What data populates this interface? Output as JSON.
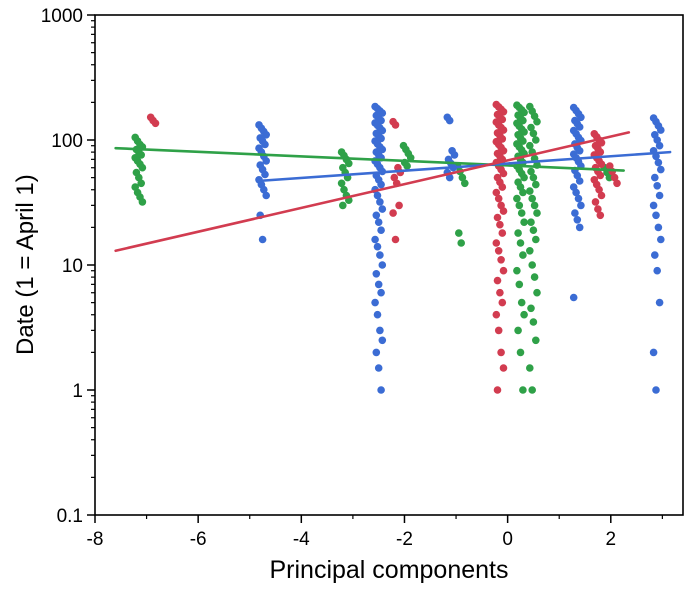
{
  "chart_data": {
    "type": "scatter",
    "title": "",
    "xlabel": "Principal components",
    "ylabel": "Date (1 = April 1)",
    "xlim": [
      -8,
      3.4
    ],
    "ylim": [
      0.1,
      1000
    ],
    "y_scale": "log",
    "x_ticks": [
      -8,
      -6,
      -4,
      -2,
      0,
      2
    ],
    "x_minor_ticks": [
      -7,
      -5,
      -3,
      -1,
      1,
      3
    ],
    "y_ticks": [
      0.1,
      1,
      10,
      100,
      1000
    ],
    "grid": false,
    "legend": "none",
    "series": [
      {
        "name": "series-green",
        "color": "#2fa148",
        "trend": {
          "x1": -7.6,
          "y1": 86,
          "x2": 2.25,
          "y2": 57
        },
        "clusters": [
          {
            "x": -7.15,
            "ys": [
              105,
              98,
              92,
              88,
              84,
              80,
              76,
              72,
              68,
              64,
              60,
              55,
              50,
              45,
              42,
              38,
              35,
              32
            ]
          },
          {
            "x": -3.15,
            "ys": [
              80,
              75,
              70,
              65,
              60,
              55,
              50,
              45,
              40,
              36,
              33,
              30
            ]
          },
          {
            "x": -1.95,
            "ys": [
              90,
              84,
              78,
              72,
              66,
              62
            ]
          },
          {
            "x": -0.9,
            "ys": [
              62,
              56,
              50,
              45,
              18,
              15
            ]
          },
          {
            "x": 0.25,
            "ys": [
              190,
              182,
              174,
              166,
              158,
              150,
              143,
              136,
              129,
              122,
              116,
              110,
              104,
              98,
              93,
              88,
              83,
              78,
              74,
              70,
              66,
              62,
              58,
              54,
              50,
              46,
              42,
              38,
              34,
              30,
              26,
              22,
              18,
              15,
              12,
              9,
              7,
              5,
              4,
              3,
              2,
              1
            ]
          },
          {
            "x": 0.5,
            "ys": [
              185,
              170,
              155,
              140,
              126,
              113,
              100,
              90,
              80,
              71,
              63,
              56,
              50,
              44,
              39,
              34,
              30,
              26,
              22,
              19,
              16,
              13,
              10,
              8,
              6,
              4.5,
              3.5,
              2.5,
              1.5,
              1
            ]
          },
          {
            "x": 1.95,
            "ys": [
              60,
              55,
              50
            ]
          }
        ]
      },
      {
        "name": "series-blue",
        "color": "#3b6cd4",
        "trend": {
          "x1": -4.85,
          "y1": 47,
          "x2": 3.15,
          "y2": 80
        },
        "clusters": [
          {
            "x": -4.75,
            "ys": [
              132,
              124,
              117,
              110,
              104,
              98,
              92,
              86,
              80,
              74,
              68,
              63,
              58,
              53,
              48,
              44,
              40,
              36,
              25,
              16
            ]
          },
          {
            "x": -2.5,
            "ys": [
              185,
              178,
              171,
              164,
              157,
              150,
              143,
              137,
              131,
              125,
              119,
              113,
              108,
              103,
              98,
              93,
              88,
              84,
              80,
              76,
              72,
              68,
              64,
              60,
              56,
              52,
              48,
              44,
              40,
              36,
              32,
              28,
              25,
              22,
              19,
              16,
              14,
              12,
              10,
              8.5,
              7,
              6,
              5,
              4,
              3,
              2.5,
              2,
              1.5,
              1
            ]
          },
          {
            "x": -1.1,
            "ys": [
              152,
              143,
              82,
              76,
              70,
              65,
              60,
              55,
              50
            ]
          },
          {
            "x": 1.35,
            "ys": [
              182,
              172,
              162,
              152,
              143,
              135,
              127,
              119,
              112,
              105,
              99,
              93,
              87,
              82,
              77,
              72,
              67,
              62,
              57,
              52,
              47,
              42,
              38,
              34,
              30,
              26,
              23,
              20,
              5.5
            ]
          },
          {
            "x": 2.9,
            "ys": [
              150,
              140,
              130,
              120,
              110,
              100,
              90,
              82,
              74,
              66,
              58,
              50,
              43,
              36,
              30,
              25,
              20,
              16,
              12,
              9,
              5,
              2,
              1
            ]
          }
        ]
      },
      {
        "name": "series-red",
        "color": "#d23c50",
        "trend": {
          "x1": -7.6,
          "y1": 13,
          "x2": 2.35,
          "y2": 115
        },
        "clusters": [
          {
            "x": -6.85,
            "ys": [
              152,
              143,
              136
            ]
          },
          {
            "x": -2.15,
            "ys": [
              140,
              132,
              60,
              55,
              50,
              45,
              30,
              26,
              16
            ]
          },
          {
            "x": -0.15,
            "ys": [
              192,
              184,
              176,
              168,
              160,
              153,
              146,
              139,
              132,
              126,
              120,
              114,
              108,
              102,
              97,
              92,
              87,
              82,
              78,
              74,
              70,
              66,
              62,
              58,
              54,
              50,
              46,
              42,
              38,
              34,
              30,
              27,
              24,
              21,
              18,
              15,
              13,
              11,
              9,
              7.5,
              6,
              5,
              4,
              3,
              2,
              1.5,
              1
            ]
          },
          {
            "x": 1.75,
            "ys": [
              112,
              106,
              100,
              95,
              90,
              85,
              80,
              76,
              72,
              68,
              64,
              60,
              56,
              52,
              48,
              44,
              40,
              36,
              32,
              28,
              25
            ]
          },
          {
            "x": 2.05,
            "ys": [
              62,
              56,
              50,
              45
            ]
          }
        ]
      }
    ]
  }
}
